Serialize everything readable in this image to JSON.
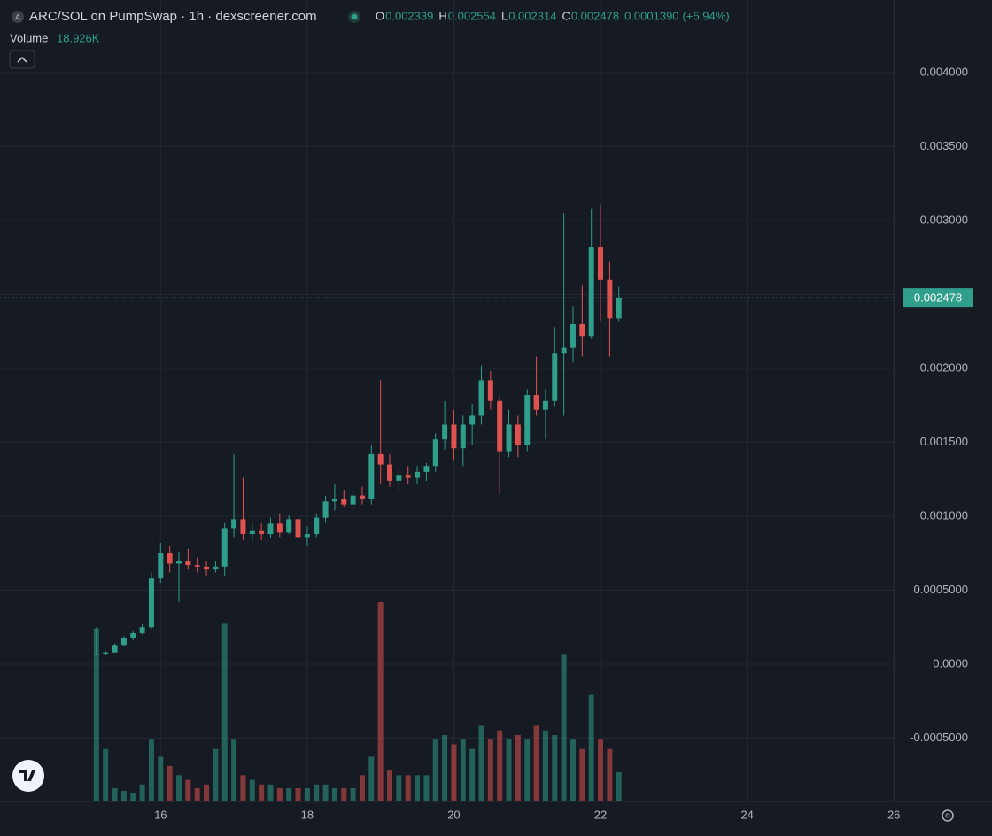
{
  "chart_data": {
    "type": "candlestick",
    "title": "ARC/SOL on PumpSwap · 1h · dexscreener.com",
    "ohlc_labels": [
      "O",
      "H",
      "L",
      "C"
    ],
    "change": {
      "value": 0.000139,
      "label": "0.0001390"
    },
    "change_percent": {
      "value": 5.94,
      "label": "(+5.94%)"
    },
    "volume_title": "Volume",
    "last_volume_label": "18.926K",
    "up_color": "#2f9e8b",
    "down_color": "#e0524f",
    "grid": true,
    "xlim": [
      13.81,
      26.01
    ],
    "xticks": [
      16,
      18,
      20,
      22,
      24,
      26
    ],
    "ylim": [
      -0.000928,
      0.004491
    ],
    "yticks": [
      {
        "value": 0.004,
        "label": "0.004000"
      },
      {
        "value": 0.0035,
        "label": "0.003500"
      },
      {
        "value": 0.003,
        "label": "0.003000"
      },
      {
        "value": 0.0025,
        "label": "0.002500"
      },
      {
        "value": 0.002,
        "label": "0.002000"
      },
      {
        "value": 0.0015,
        "label": "0.001500"
      },
      {
        "value": 0.001,
        "label": "0.001000"
      },
      {
        "value": 0.0005,
        "label": "0.0005000"
      },
      {
        "value": 0,
        "label": "0.0000"
      },
      {
        "value": -0.0005,
        "label": "-0.0005000"
      }
    ],
    "volume_lim": [
      0,
      172000
    ],
    "x": [
      15.125,
      15.25,
      15.375,
      15.5,
      15.625,
      15.75,
      15.875,
      16,
      16.125,
      16.25,
      16.375,
      16.5,
      16.625,
      16.75,
      16.875,
      17,
      17.125,
      17.25,
      17.375,
      17.5,
      17.625,
      17.75,
      17.875,
      18,
      18.125,
      18.25,
      18.375,
      18.5,
      18.625,
      18.75,
      18.875,
      19,
      19.125,
      19.25,
      19.375,
      19.5,
      19.625,
      19.75,
      19.875,
      20,
      20.125,
      20.25,
      20.375,
      20.5,
      20.625,
      20.75,
      20.875,
      21,
      21.125,
      21.25,
      21.375,
      21.5,
      21.625,
      21.75,
      21.875,
      22,
      22.125,
      22.25
    ],
    "open": [
      7e-05,
      7e-05,
      8e-05,
      0.00013,
      0.00018,
      0.00021,
      0.00025,
      0.00058,
      0.00075,
      0.00068,
      0.0007,
      0.00067,
      0.00066,
      0.00064,
      0.00066,
      0.00092,
      0.00098,
      0.00088,
      0.0009,
      0.00088,
      0.00095,
      0.00089,
      0.00098,
      0.00086,
      0.00088,
      0.00099,
      0.0011,
      0.00112,
      0.00108,
      0.00114,
      0.00112,
      0.00142,
      0.00135,
      0.00124,
      0.00128,
      0.00126,
      0.0013,
      0.00134,
      0.00152,
      0.00162,
      0.00146,
      0.00162,
      0.00168,
      0.00192,
      0.00178,
      0.00144,
      0.00162,
      0.00148,
      0.00182,
      0.00172,
      0.00178,
      0.0021,
      0.00214,
      0.0023,
      0.00222,
      0.00282,
      0.0026,
      0.002339
    ],
    "high": [
      0.00025,
      9e-05,
      0.00014,
      0.00019,
      0.00022,
      0.00027,
      0.00062,
      0.00082,
      0.0008,
      0.00076,
      0.00078,
      0.00072,
      0.0007,
      0.0007,
      0.00096,
      0.00142,
      0.00126,
      0.00096,
      0.00095,
      0.00099,
      0.00102,
      0.00101,
      0.00099,
      0.00093,
      0.00102,
      0.00114,
      0.00122,
      0.00118,
      0.00118,
      0.0012,
      0.00148,
      0.00192,
      0.00142,
      0.00132,
      0.00134,
      0.00134,
      0.00136,
      0.00156,
      0.00178,
      0.00172,
      0.00168,
      0.00176,
      0.00202,
      0.00198,
      0.00182,
      0.00172,
      0.00168,
      0.00186,
      0.00208,
      0.00186,
      0.00228,
      0.00305,
      0.00242,
      0.00256,
      0.00308,
      0.00311,
      0.00272,
      0.002554
    ],
    "low": [
      6e-05,
      6e-05,
      8e-05,
      0.00012,
      0.00016,
      0.0002,
      0.00024,
      0.00055,
      0.00062,
      0.00042,
      0.00064,
      0.00062,
      0.0006,
      0.00062,
      0.0006,
      0.00086,
      0.00084,
      0.00083,
      0.00084,
      0.00085,
      0.00086,
      0.00088,
      0.00079,
      0.0008,
      0.00086,
      0.00096,
      0.00104,
      0.00106,
      0.00104,
      0.00108,
      0.00108,
      0.00122,
      0.0012,
      0.00116,
      0.00122,
      0.00122,
      0.00124,
      0.0013,
      0.00145,
      0.00138,
      0.00134,
      0.00148,
      0.00162,
      0.00172,
      0.00115,
      0.0014,
      0.0014,
      0.00144,
      0.00168,
      0.00152,
      0.00174,
      0.00168,
      0.00204,
      0.00208,
      0.0022,
      0.00232,
      0.00208,
      0.002314
    ],
    "close": [
      7e-05,
      8e-05,
      0.00013,
      0.00018,
      0.00021,
      0.00025,
      0.00058,
      0.00075,
      0.00068,
      0.0007,
      0.00067,
      0.00066,
      0.00064,
      0.00066,
      0.00092,
      0.00098,
      0.00088,
      0.0009,
      0.00088,
      0.00095,
      0.00089,
      0.00098,
      0.00086,
      0.00088,
      0.00099,
      0.0011,
      0.00112,
      0.00108,
      0.00114,
      0.00112,
      0.00142,
      0.00135,
      0.00124,
      0.00128,
      0.00126,
      0.0013,
      0.00134,
      0.00152,
      0.00162,
      0.00146,
      0.00162,
      0.00168,
      0.00192,
      0.00178,
      0.00144,
      0.00162,
      0.00148,
      0.00182,
      0.00172,
      0.00178,
      0.0021,
      0.00214,
      0.0023,
      0.00222,
      0.00282,
      0.0026,
      0.00234,
      0.002478
    ],
    "volume": [
      112000,
      34000,
      8600,
      6900,
      5700,
      11000,
      40000,
      29000,
      23000,
      17000,
      14000,
      8600,
      11000,
      34000,
      115000,
      40000,
      17000,
      14000,
      11000,
      11000,
      8600,
      8600,
      8600,
      8600,
      11000,
      11000,
      8600,
      8600,
      8600,
      17000,
      29000,
      129000,
      20000,
      17000,
      17000,
      17000,
      17000,
      40000,
      43000,
      37000,
      40000,
      34000,
      49000,
      40000,
      46000,
      40000,
      43000,
      40000,
      49000,
      46000,
      43000,
      95000,
      40000,
      34000,
      69000,
      40000,
      34000,
      18926
    ]
  }
}
